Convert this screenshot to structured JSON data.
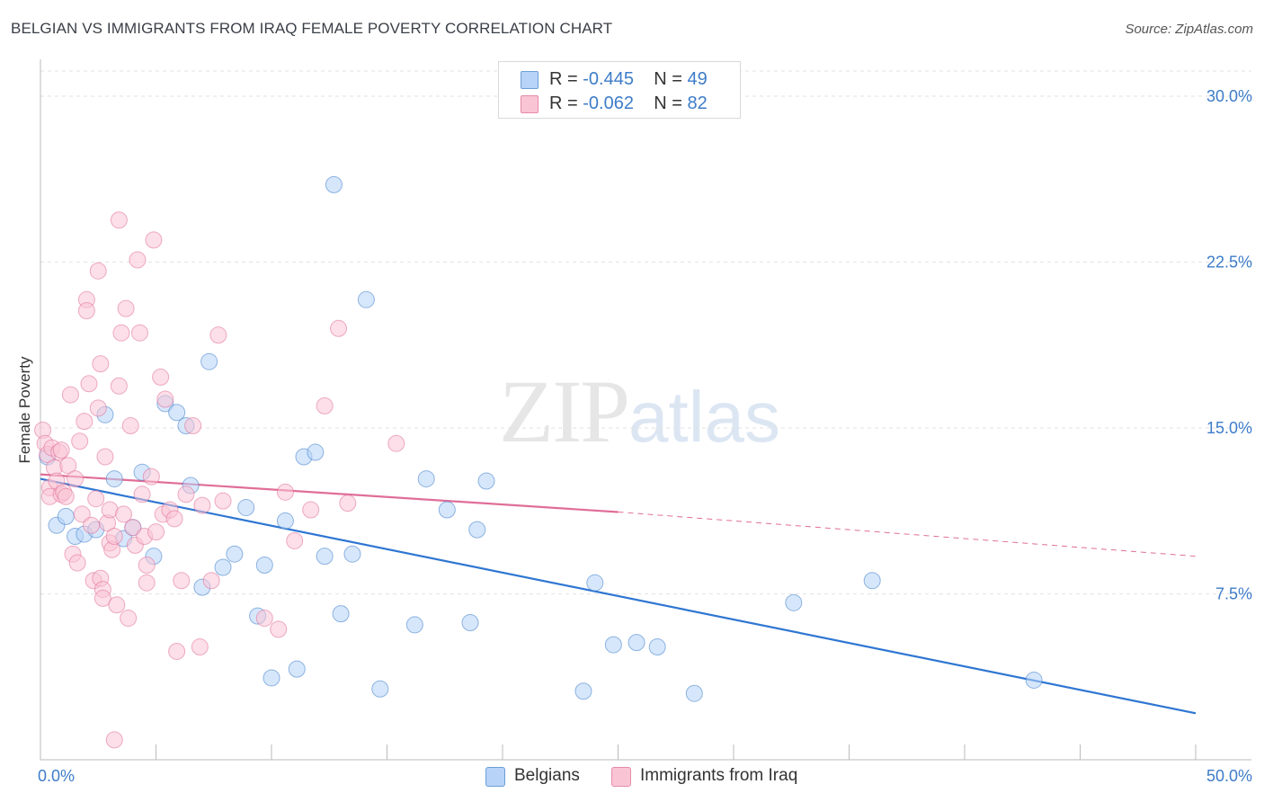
{
  "header": {
    "title": "BELGIAN VS IMMIGRANTS FROM IRAQ FEMALE POVERTY CORRELATION CHART",
    "source": "Source: ZipAtlas.com"
  },
  "watermark": {
    "zip": "ZIP",
    "atlas": "atlas"
  },
  "legend_top": {
    "rows": [
      {
        "r_label": "R = ",
        "r_value": "-0.445",
        "n_label": "N = ",
        "n_value": "49",
        "color": "#b7d3f7"
      },
      {
        "r_label": "R = ",
        "r_value": "-0.062",
        "n_label": "N = ",
        "n_value": "82",
        "color": "#f9c5d5"
      }
    ]
  },
  "legend_bottom": {
    "items": [
      {
        "label": "Belgians",
        "color": "#b7d3f7"
      },
      {
        "label": "Immigrants from Iraq",
        "color": "#f9c5d5"
      }
    ]
  },
  "chart_data": {
    "type": "scatter",
    "title": "BELGIAN VS IMMIGRANTS FROM IRAQ FEMALE POVERTY CORRELATION CHART",
    "xlabel": "",
    "ylabel": "Female Poverty",
    "xlim": [
      0,
      50
    ],
    "ylim": [
      0,
      31.3
    ],
    "x_tick_labels": [
      "0.0%",
      "50.0%"
    ],
    "y_ticks": [
      7.5,
      15.0,
      22.5,
      30.0
    ],
    "y_tick_labels": [
      "7.5%",
      "15.0%",
      "22.5%",
      "30.0%"
    ],
    "grid": true,
    "legend_position": "top-center",
    "series": [
      {
        "name": "Belgians",
        "color": "#b7d3f7",
        "stroke": "#3d7cc9",
        "trend": {
          "x0": 0,
          "y0": 12.7,
          "x1": 50,
          "y1": 2.1,
          "dashed_from": null
        },
        "points": [
          [
            0.3,
            13.7
          ],
          [
            0.7,
            10.6
          ],
          [
            1.1,
            11.0
          ],
          [
            1.5,
            10.1
          ],
          [
            1.9,
            10.2
          ],
          [
            2.4,
            10.4
          ],
          [
            2.8,
            15.6
          ],
          [
            3.2,
            12.7
          ],
          [
            3.6,
            10.0
          ],
          [
            4.0,
            10.5
          ],
          [
            4.4,
            13.0
          ],
          [
            4.9,
            9.2
          ],
          [
            5.4,
            16.1
          ],
          [
            5.9,
            15.7
          ],
          [
            6.3,
            15.1
          ],
          [
            6.5,
            12.4
          ],
          [
            7.0,
            7.8
          ],
          [
            7.3,
            18.0
          ],
          [
            7.9,
            8.7
          ],
          [
            8.4,
            9.3
          ],
          [
            8.9,
            11.4
          ],
          [
            9.4,
            6.5
          ],
          [
            9.7,
            8.8
          ],
          [
            10.0,
            3.7
          ],
          [
            10.6,
            10.8
          ],
          [
            11.1,
            4.1
          ],
          [
            11.4,
            13.7
          ],
          [
            11.9,
            13.9
          ],
          [
            12.3,
            9.2
          ],
          [
            12.7,
            26.0
          ],
          [
            13.0,
            6.6
          ],
          [
            13.5,
            9.3
          ],
          [
            14.1,
            20.8
          ],
          [
            14.7,
            3.2
          ],
          [
            16.2,
            6.1
          ],
          [
            16.7,
            12.7
          ],
          [
            17.6,
            11.3
          ],
          [
            18.6,
            6.2
          ],
          [
            18.9,
            10.4
          ],
          [
            19.3,
            12.6
          ],
          [
            23.5,
            3.1
          ],
          [
            24.0,
            8.0
          ],
          [
            24.8,
            5.2
          ],
          [
            25.8,
            5.3
          ],
          [
            26.7,
            5.1
          ],
          [
            28.3,
            3.0
          ],
          [
            32.6,
            7.1
          ],
          [
            36.0,
            8.1
          ],
          [
            43.0,
            3.6
          ]
        ]
      },
      {
        "name": "Immigrants from Iraq",
        "color": "#f9c5d5",
        "stroke": "#e06e98",
        "trend": {
          "x0": 0,
          "y0": 12.9,
          "x1": 25.0,
          "y1": 11.2,
          "dashed_to": 50,
          "dashed_y": 9.2
        },
        "points": [
          [
            0.1,
            14.9
          ],
          [
            0.2,
            14.3
          ],
          [
            0.3,
            13.8
          ],
          [
            0.4,
            12.3
          ],
          [
            0.4,
            11.9
          ],
          [
            0.5,
            14.1
          ],
          [
            0.6,
            13.2
          ],
          [
            0.7,
            12.6
          ],
          [
            0.8,
            13.9
          ],
          [
            0.9,
            12.0
          ],
          [
            1.0,
            12.1
          ],
          [
            1.1,
            11.9
          ],
          [
            1.2,
            13.3
          ],
          [
            1.3,
            16.5
          ],
          [
            1.4,
            9.3
          ],
          [
            1.5,
            12.7
          ],
          [
            1.6,
            8.9
          ],
          [
            1.7,
            14.4
          ],
          [
            1.8,
            11.1
          ],
          [
            1.9,
            15.3
          ],
          [
            2.0,
            20.8
          ],
          [
            2.0,
            20.3
          ],
          [
            2.1,
            17.0
          ],
          [
            2.2,
            10.6
          ],
          [
            2.3,
            8.1
          ],
          [
            2.4,
            11.8
          ],
          [
            2.5,
            22.1
          ],
          [
            2.5,
            15.9
          ],
          [
            2.6,
            17.9
          ],
          [
            2.6,
            8.2
          ],
          [
            2.7,
            7.7
          ],
          [
            2.7,
            7.3
          ],
          [
            2.8,
            13.7
          ],
          [
            2.9,
            10.7
          ],
          [
            3.0,
            11.3
          ],
          [
            3.0,
            9.8
          ],
          [
            3.1,
            9.5
          ],
          [
            3.2,
            10.1
          ],
          [
            3.3,
            7.0
          ],
          [
            3.4,
            24.4
          ],
          [
            3.4,
            16.9
          ],
          [
            3.5,
            19.3
          ],
          [
            3.6,
            11.1
          ],
          [
            3.7,
            20.4
          ],
          [
            3.8,
            6.4
          ],
          [
            3.9,
            15.1
          ],
          [
            4.0,
            10.5
          ],
          [
            4.1,
            9.7
          ],
          [
            4.2,
            22.6
          ],
          [
            4.3,
            19.3
          ],
          [
            4.4,
            12.0
          ],
          [
            4.5,
            10.1
          ],
          [
            4.6,
            8.0
          ],
          [
            4.6,
            8.8
          ],
          [
            4.8,
            12.8
          ],
          [
            4.9,
            23.5
          ],
          [
            5.0,
            10.3
          ],
          [
            5.2,
            17.3
          ],
          [
            5.3,
            11.1
          ],
          [
            5.4,
            16.3
          ],
          [
            5.6,
            11.3
          ],
          [
            5.8,
            10.9
          ],
          [
            5.9,
            4.9
          ],
          [
            6.1,
            8.1
          ],
          [
            6.3,
            12.0
          ],
          [
            6.6,
            15.1
          ],
          [
            6.9,
            5.1
          ],
          [
            7.0,
            11.5
          ],
          [
            7.4,
            8.1
          ],
          [
            7.7,
            19.2
          ],
          [
            7.9,
            11.7
          ],
          [
            9.7,
            6.4
          ],
          [
            10.3,
            5.9
          ],
          [
            10.6,
            12.1
          ],
          [
            11.0,
            9.9
          ],
          [
            11.7,
            11.3
          ],
          [
            12.3,
            16.0
          ],
          [
            12.9,
            19.5
          ],
          [
            13.3,
            11.6
          ],
          [
            15.4,
            14.3
          ],
          [
            3.2,
            0.9
          ],
          [
            0.9,
            14.0
          ]
        ]
      }
    ]
  }
}
